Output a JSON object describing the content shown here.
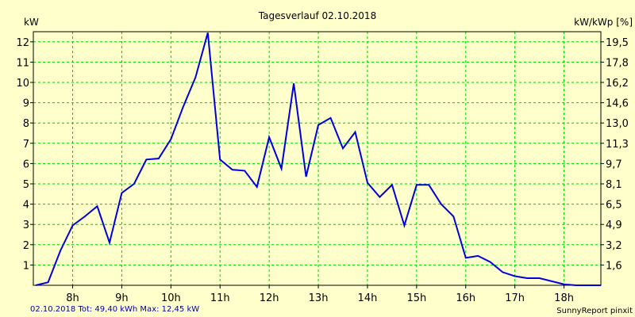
{
  "colors": {
    "background": "#ffffcc",
    "grid": "#00cc00",
    "line": "#0000dd",
    "footer_text": "#0000aa",
    "axis": "#000000"
  },
  "chart_data": {
    "type": "line",
    "title": "Tagesverlauf 02.10.2018",
    "ylabel_left": "kW",
    "ylabel_right": "kW/kWp [%]",
    "xlim": [
      7.2,
      18.75
    ],
    "ylim": [
      0,
      12.5
    ],
    "grid": true,
    "x_ticks": [
      {
        "value": 8,
        "label": "8h"
      },
      {
        "value": 9,
        "label": "9h"
      },
      {
        "value": 10,
        "label": "10h"
      },
      {
        "value": 11,
        "label": "11h"
      },
      {
        "value": 12,
        "label": "12h"
      },
      {
        "value": 13,
        "label": "13h"
      },
      {
        "value": 14,
        "label": "14h"
      },
      {
        "value": 15,
        "label": "15h"
      },
      {
        "value": 16,
        "label": "16h"
      },
      {
        "value": 17,
        "label": "17h"
      },
      {
        "value": 18,
        "label": "18h"
      }
    ],
    "y_ticks_left": [
      {
        "value": 1,
        "label": "1"
      },
      {
        "value": 2,
        "label": "2"
      },
      {
        "value": 3,
        "label": "3"
      },
      {
        "value": 4,
        "label": "4"
      },
      {
        "value": 5,
        "label": "5"
      },
      {
        "value": 6,
        "label": "6"
      },
      {
        "value": 7,
        "label": "7"
      },
      {
        "value": 8,
        "label": "8"
      },
      {
        "value": 9,
        "label": "9"
      },
      {
        "value": 10,
        "label": "10"
      },
      {
        "value": 11,
        "label": "11"
      },
      {
        "value": 12,
        "label": "12"
      }
    ],
    "y_ticks_right": [
      {
        "value": 1,
        "label": "1,6"
      },
      {
        "value": 2,
        "label": "3,2"
      },
      {
        "value": 3,
        "label": "4,9"
      },
      {
        "value": 4,
        "label": "6,5"
      },
      {
        "value": 5,
        "label": "8,1"
      },
      {
        "value": 6,
        "label": "9,7"
      },
      {
        "value": 7,
        "label": "11,3"
      },
      {
        "value": 8,
        "label": "13,0"
      },
      {
        "value": 9,
        "label": "14,6"
      },
      {
        "value": 10,
        "label": "16,2"
      },
      {
        "value": 11,
        "label": "17,8"
      },
      {
        "value": 12,
        "label": "19,5"
      }
    ],
    "series": [
      {
        "x": [
          7.25,
          7.5,
          7.75,
          8.0,
          8.25,
          8.5,
          8.75,
          9.0,
          9.25,
          9.5,
          9.75,
          10.0,
          10.25,
          10.5,
          10.75,
          11.0,
          11.25,
          11.5,
          11.75,
          12.0,
          12.25,
          12.5,
          12.75,
          13.0,
          13.25,
          13.5,
          13.75,
          14.0,
          14.25,
          14.5,
          14.75,
          15.0,
          15.25,
          15.5,
          15.75,
          16.0,
          16.25,
          16.5,
          16.75,
          17.0,
          17.25,
          17.5,
          17.75,
          18.0,
          18.25,
          18.5,
          18.75
        ],
        "values": [
          0.0,
          0.15,
          1.7,
          2.95,
          3.4,
          3.9,
          2.1,
          4.55,
          5.0,
          6.2,
          6.25,
          7.2,
          8.8,
          10.25,
          12.45,
          6.2,
          5.7,
          5.65,
          4.85,
          7.3,
          5.75,
          9.95,
          5.35,
          7.9,
          8.25,
          6.75,
          7.55,
          5.05,
          4.35,
          4.95,
          2.95,
          4.95,
          4.95,
          4.0,
          3.4,
          1.35,
          1.45,
          1.15,
          0.65,
          0.45,
          0.35,
          0.35,
          0.2,
          0.05,
          0.0,
          0.0,
          0.0
        ]
      }
    ]
  },
  "footer": {
    "summary": "02.10.2018 Tot: 49,40 kWh Max: 12,45 kW",
    "credit": "SunnyReport pinxit"
  }
}
